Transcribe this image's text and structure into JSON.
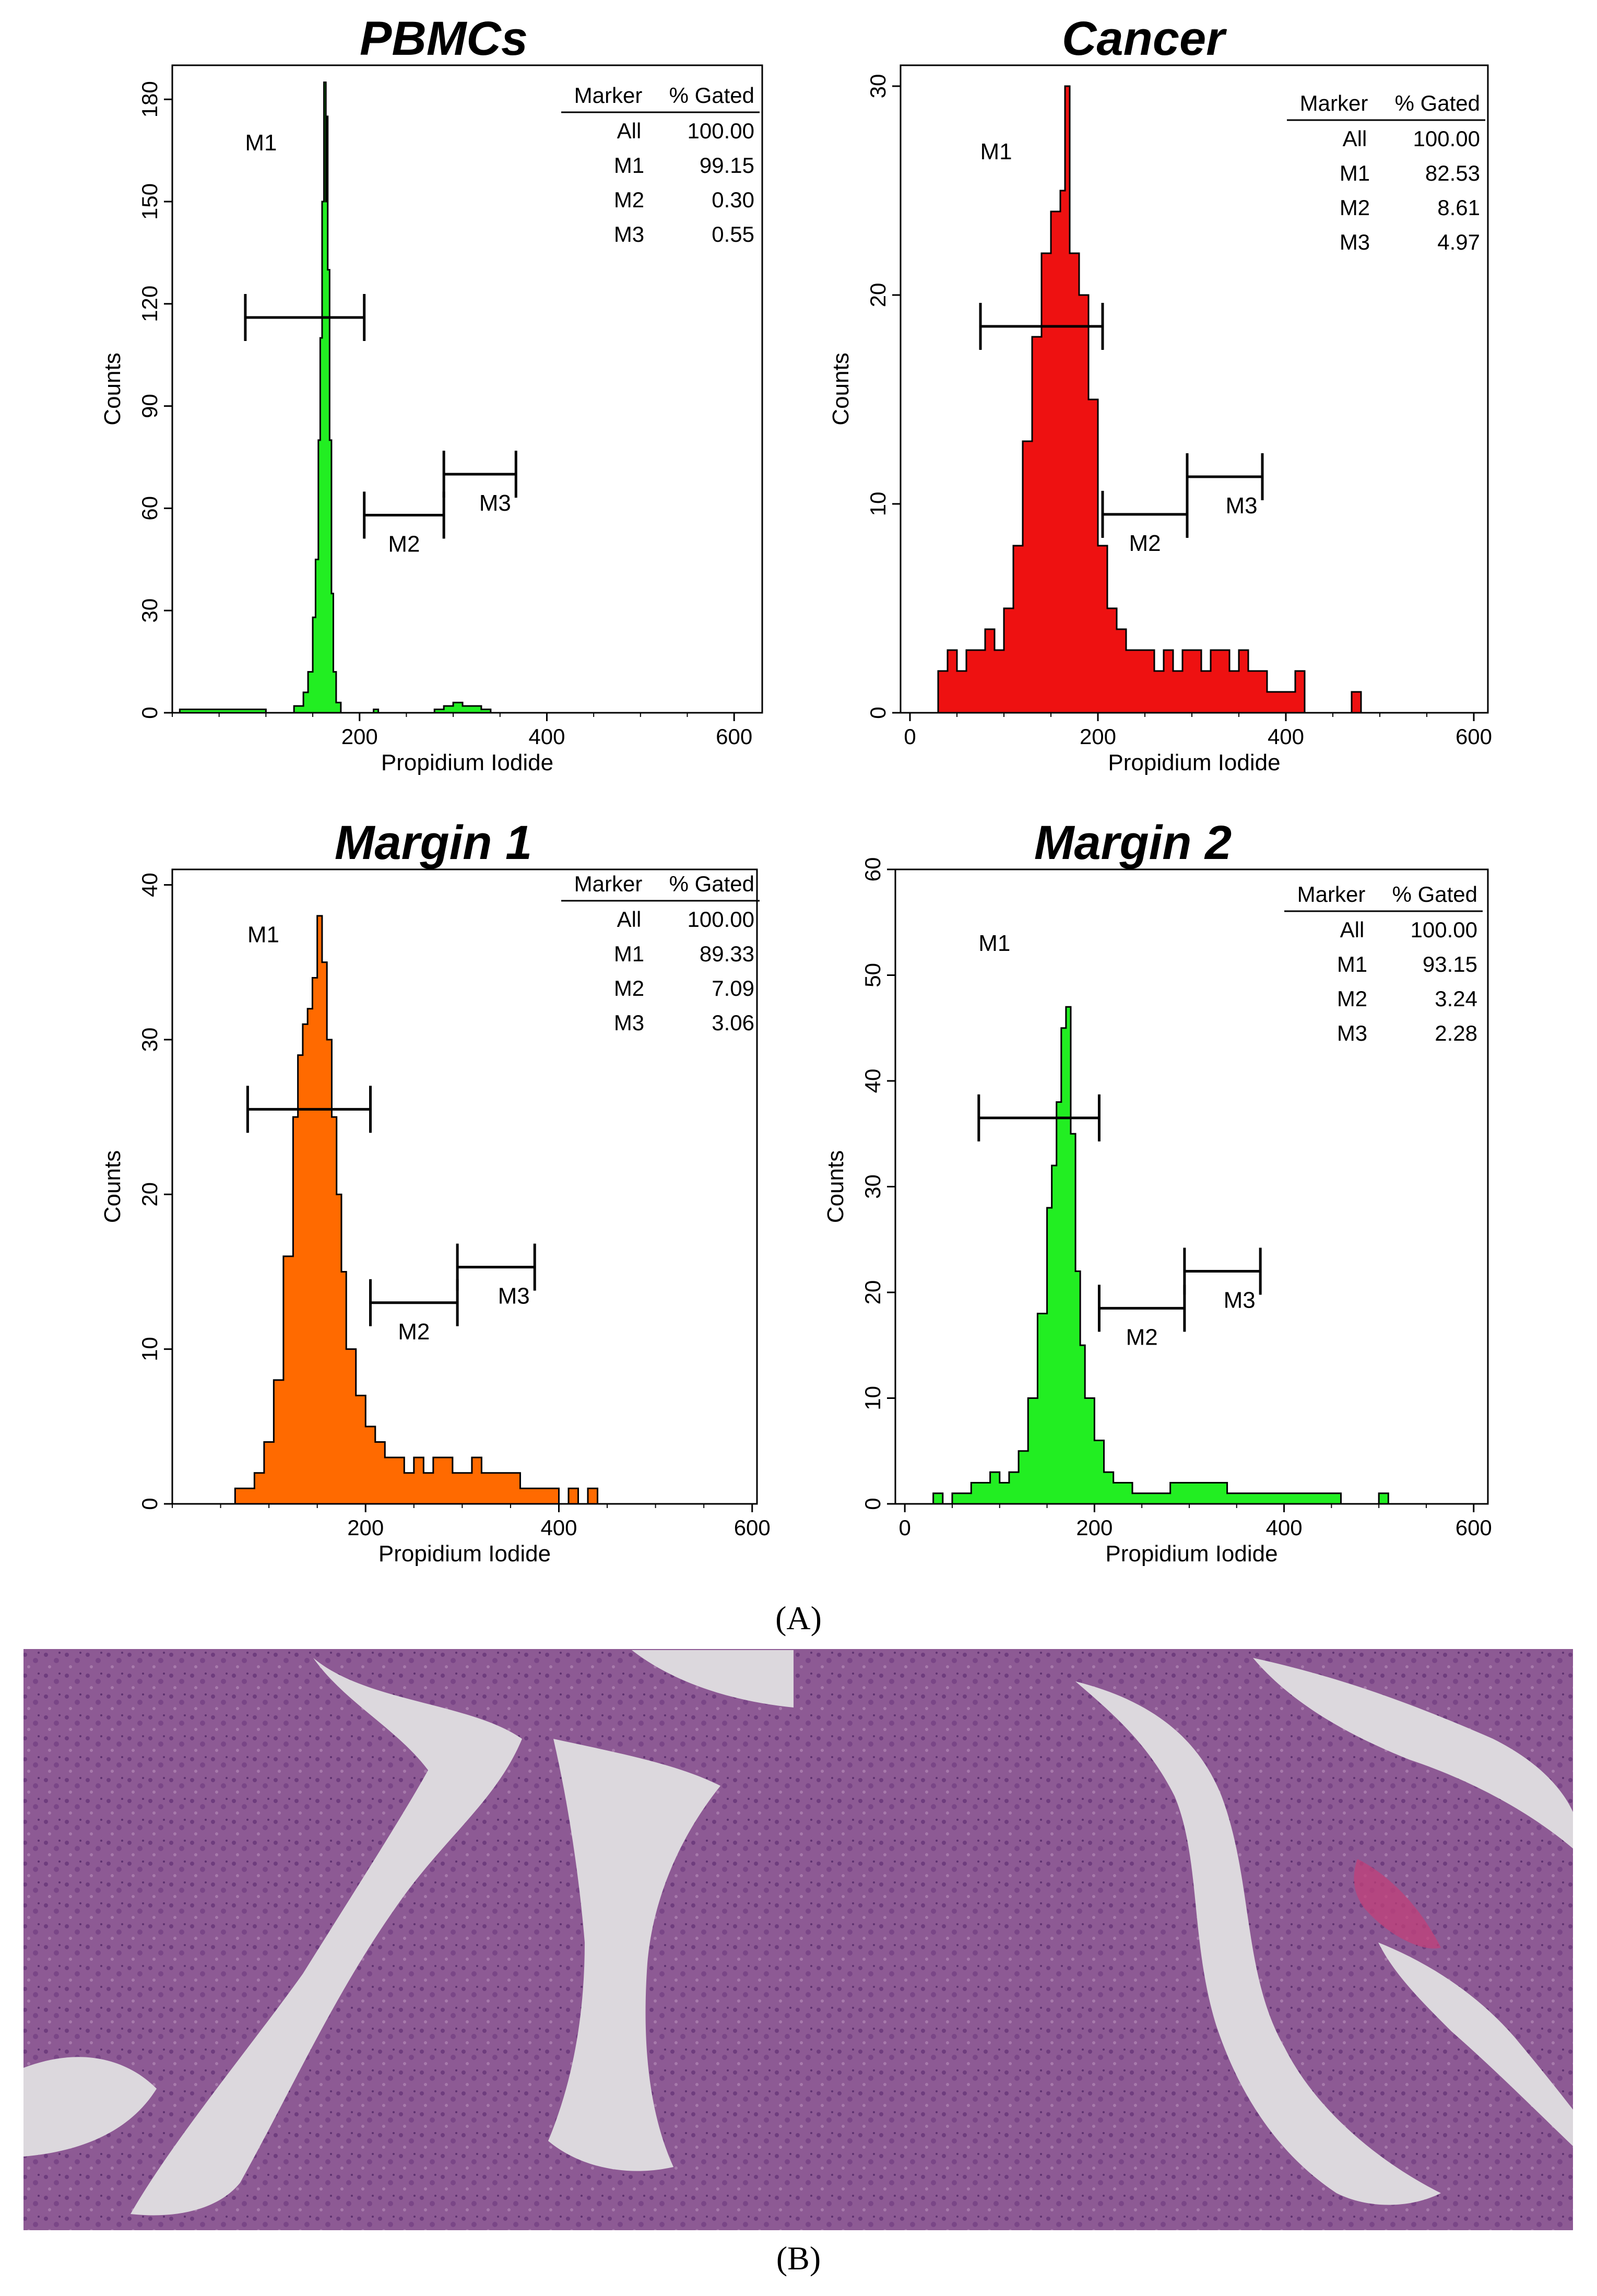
{
  "figure": {
    "label_a": "(A)",
    "label_b": "(B)",
    "axis_x_label": "Propidium Iodide",
    "axis_y_label": "Counts",
    "table_header": [
      "Marker",
      "% Gated"
    ]
  },
  "chart_data": [
    {
      "type": "histogram",
      "title": "PBMCs",
      "xlabel": "Propidium Iodide",
      "ylabel": "Counts",
      "xlim": [
        0,
        630
      ],
      "ylim": [
        0,
        190
      ],
      "xticks": [
        200,
        400,
        600
      ],
      "yticks": [
        0,
        30,
        60,
        90,
        120,
        150,
        180
      ],
      "fill_color": "#22ee22",
      "histogram": {
        "x": [
          8,
          100,
          130,
          140,
          145,
          150,
          153,
          156,
          158,
          160,
          162,
          164,
          165,
          166,
          168,
          170,
          172,
          175,
          180,
          215,
          220,
          225,
          280,
          290,
          300,
          310,
          320,
          330,
          340,
          400,
          600,
          630
        ],
        "y": [
          1,
          0,
          2,
          6,
          12,
          28,
          45,
          80,
          110,
          150,
          185,
          150,
          175,
          130,
          80,
          35,
          12,
          3,
          0,
          1,
          0,
          0,
          1,
          2,
          3,
          2,
          2,
          1,
          0,
          0,
          0,
          0
        ]
      },
      "markers": [
        {
          "name": "M1",
          "range": [
            78,
            205
          ],
          "level": 116
        },
        {
          "name": "M2",
          "range": [
            205,
            290
          ],
          "level": 58
        },
        {
          "name": "M3",
          "range": [
            290,
            367
          ],
          "level": 70
        }
      ],
      "gated_table": [
        {
          "marker": "All",
          "value": "100.00"
        },
        {
          "marker": "M1",
          "value": "99.15"
        },
        {
          "marker": "M2",
          "value": "0.30"
        },
        {
          "marker": "M3",
          "value": "0.55"
        }
      ]
    },
    {
      "type": "histogram",
      "title": "Cancer",
      "xlabel": "Propidium Iodide",
      "ylabel": "Counts",
      "xlim": [
        -10,
        615
      ],
      "ylim": [
        0,
        31
      ],
      "xticks": [
        0,
        200,
        400,
        600
      ],
      "yticks": [
        0,
        10,
        20,
        30
      ],
      "fill_color": "#ee1111",
      "histogram": {
        "x": [
          30,
          40,
          50,
          60,
          70,
          80,
          90,
          100,
          110,
          120,
          130,
          140,
          150,
          160,
          165,
          170,
          180,
          190,
          200,
          210,
          220,
          230,
          240,
          250,
          260,
          270,
          280,
          290,
          300,
          310,
          320,
          330,
          340,
          350,
          360,
          370,
          380,
          390,
          400,
          410,
          420,
          460,
          470,
          480,
          600
        ],
        "y": [
          2,
          3,
          2,
          3,
          3,
          4,
          3,
          5,
          8,
          13,
          18,
          22,
          24,
          25,
          30,
          22,
          20,
          15,
          8,
          5,
          4,
          3,
          3,
          3,
          2,
          3,
          2,
          3,
          3,
          2,
          3,
          3,
          2,
          3,
          2,
          2,
          1,
          1,
          1,
          2,
          0,
          0,
          1,
          0,
          0
        ]
      },
      "markers": [
        {
          "name": "M1",
          "range": [
            75,
            205
          ],
          "level": 18.5
        },
        {
          "name": "M2",
          "range": [
            205,
            295
          ],
          "level": 9.5
        },
        {
          "name": "M3",
          "range": [
            295,
            375
          ],
          "level": 11.3
        }
      ],
      "gated_table": [
        {
          "marker": "All",
          "value": "100.00"
        },
        {
          "marker": "M1",
          "value": "82.53"
        },
        {
          "marker": "M2",
          "value": "8.61"
        },
        {
          "marker": "M3",
          "value": "4.97"
        }
      ]
    },
    {
      "type": "histogram",
      "title": "Margin 1",
      "xlabel": "Propidium Iodide",
      "ylabel": "Counts",
      "xlim": [
        0,
        605
      ],
      "ylim": [
        0,
        41
      ],
      "xticks": [
        200,
        400,
        600
      ],
      "yticks": [
        0,
        10,
        20,
        30,
        40
      ],
      "fill_color": "#ff6a00",
      "histogram": {
        "x": [
          65,
          75,
          85,
          95,
          105,
          115,
          125,
          130,
          135,
          140,
          145,
          150,
          155,
          160,
          165,
          170,
          175,
          180,
          190,
          200,
          210,
          220,
          230,
          240,
          250,
          260,
          270,
          280,
          290,
          300,
          310,
          320,
          330,
          340,
          350,
          360,
          370,
          380,
          390,
          400,
          410,
          420,
          430,
          440,
          600
        ],
        "y": [
          1,
          1,
          2,
          4,
          8,
          16,
          25,
          29,
          31,
          32,
          34,
          38,
          35,
          30,
          25,
          20,
          15,
          10,
          7,
          5,
          4,
          3,
          3,
          2,
          3,
          2,
          3,
          3,
          2,
          2,
          3,
          2,
          2,
          2,
          2,
          1,
          1,
          1,
          1,
          0,
          1,
          0,
          1,
          0,
          0
        ]
      },
      "markers": [
        {
          "name": "M1",
          "range": [
            78,
            205
          ],
          "level": 25.5
        },
        {
          "name": "M2",
          "range": [
            205,
            295
          ],
          "level": 13
        },
        {
          "name": "M3",
          "range": [
            295,
            375
          ],
          "level": 15.3
        }
      ],
      "gated_table": [
        {
          "marker": "All",
          "value": "100.00"
        },
        {
          "marker": "M1",
          "value": "89.33"
        },
        {
          "marker": "M2",
          "value": "7.09"
        },
        {
          "marker": "M3",
          "value": "3.06"
        }
      ]
    },
    {
      "type": "histogram",
      "title": "Margin 2",
      "xlabel": "Propidium Iodide",
      "ylabel": "Counts",
      "xlim": [
        -10,
        615
      ],
      "ylim": [
        0,
        60
      ],
      "xticks": [
        0,
        200,
        400,
        600
      ],
      "yticks": [
        0,
        10,
        20,
        30,
        40,
        50,
        60
      ],
      "fill_color": "#22ee22",
      "histogram": {
        "x": [
          20,
          30,
          40,
          50,
          60,
          70,
          80,
          90,
          100,
          110,
          120,
          130,
          140,
          150,
          155,
          160,
          165,
          170,
          175,
          180,
          185,
          190,
          200,
          210,
          220,
          230,
          240,
          260,
          280,
          300,
          320,
          340,
          360,
          380,
          400,
          420,
          440,
          460,
          500,
          510,
          520,
          600
        ],
        "y": [
          0,
          1,
          0,
          1,
          1,
          2,
          2,
          3,
          2,
          3,
          5,
          10,
          18,
          28,
          32,
          38,
          45,
          47,
          35,
          22,
          15,
          10,
          6,
          3,
          2,
          2,
          1,
          1,
          2,
          2,
          2,
          1,
          1,
          1,
          1,
          1,
          1,
          0,
          1,
          0,
          0,
          0
        ]
      },
      "markers": [
        {
          "name": "M1",
          "range": [
            78,
            205
          ],
          "level": 36.5
        },
        {
          "name": "M2",
          "range": [
            205,
            295
          ],
          "level": 18.5
        },
        {
          "name": "M3",
          "range": [
            295,
            375
          ],
          "level": 22
        }
      ],
      "gated_table": [
        {
          "marker": "All",
          "value": "100.00"
        },
        {
          "marker": "M1",
          "value": "93.15"
        },
        {
          "marker": "M2",
          "value": "3.24"
        },
        {
          "marker": "M3",
          "value": "2.28"
        }
      ]
    }
  ]
}
